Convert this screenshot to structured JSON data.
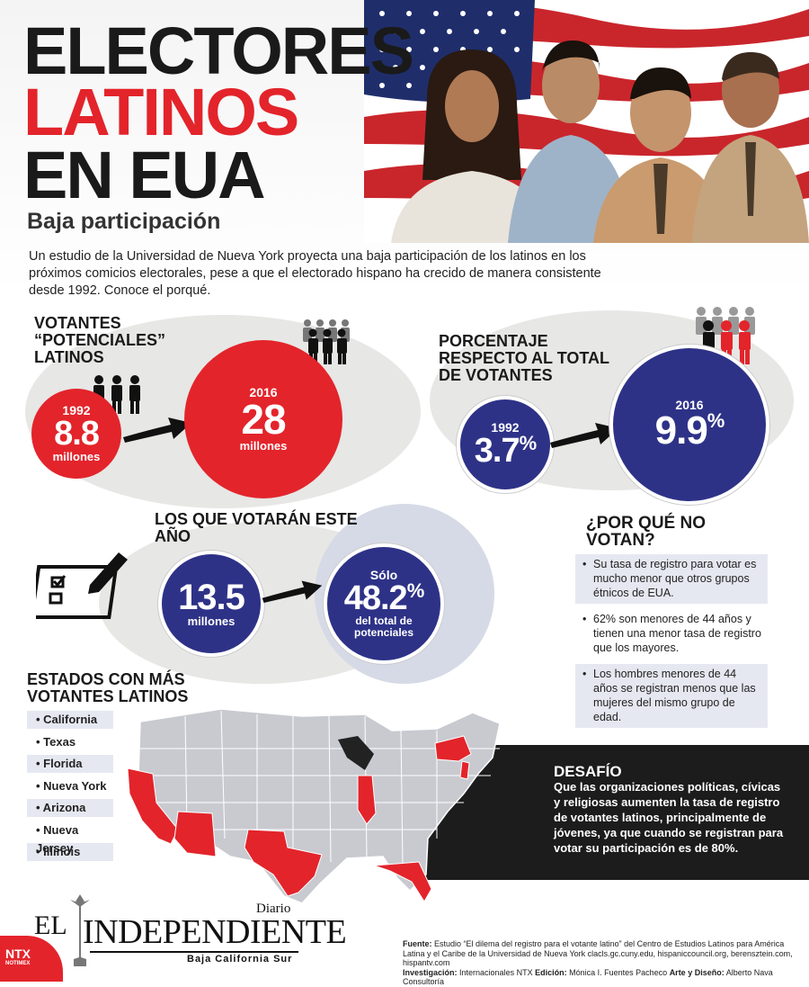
{
  "header": {
    "title_line1": "ELECTORES",
    "title_line2": "LATINOS",
    "title_line3": "EN EUA",
    "subtitle": "Baja participación",
    "intro": "Un estudio de la Universidad de Nueva York proyecta una baja participación de los latinos en los próximos comicios electorales, pese a que el electorado hispano ha crecido de manera consistente desde 1992. Conoce el porqué."
  },
  "potential": {
    "heading": "VOTANTES “POTENCIALES” LATINOS",
    "year_a": "1992",
    "value_a": "8.8",
    "unit_a": "millones",
    "year_b": "2016",
    "value_b": "28",
    "unit_b": "millones"
  },
  "share": {
    "heading": "PORCENTAJE RESPECTO AL TOTAL DE VOTANTES",
    "year_a": "1992",
    "value_a": "3.7",
    "year_b": "2016",
    "value_b": "9.9",
    "pct": "%"
  },
  "will_vote": {
    "heading": "LOS QUE VOTARÁN ESTE AÑO",
    "value": "13.5",
    "unit": "millones",
    "only": "Sólo",
    "share": "48.2",
    "pct": "%",
    "share_caption": "del total de potenciales"
  },
  "why": {
    "heading": "¿POR QUÉ NO VOTAN?",
    "reasons": [
      "Su tasa de registro para votar es mucho menor que otros grupos étnicos de EUA.",
      "62% son menores de 44 años y tienen una menor tasa de registro que los mayores.",
      "Los hombres menores de 44 años se registran menos que las mujeres del mismo grupo de edad."
    ]
  },
  "states": {
    "heading": "ESTADOS CON MÁS VOTANTES LATINOS",
    "items": [
      "• California",
      "• Texas",
      "• Florida",
      "• Nueva York",
      "• Arizona",
      "• Nueva Jersey",
      "• Illinois"
    ]
  },
  "challenge": {
    "heading": "DESAFÍO",
    "text": "Que las organizaciones políticas, cívicas y religiosas aumenten la tasa de registro de votantes latinos, principalmente de jóvenes, ya que cuando se registran para votar su participación es de 80%."
  },
  "footer": {
    "source_label": "Fuente:",
    "source": "Estudio “El dilema del registro para el votante latino” del Centro de Estudios Latinos para América Latina y el Caribe de la Universidad de Nueva York clacls.gc.cuny.edu, hispaniccouncil.org, berensztein.com, hispantv.com",
    "research_label": "Investigación:",
    "research": "Internacionales NTX",
    "edition_label": "Edición:",
    "edition": "Mónica I. Fuentes Pacheco",
    "design_label": "Arte y Diseño:",
    "design": "Alberto Nava Consultoría"
  },
  "logo": {
    "el": "EL",
    "name": "INDEPENDIENTE",
    "diario": "Diario",
    "region": "Baja California Sur",
    "ntx": "NTX",
    "ntx_sub": "NOTIMEX"
  },
  "colors": {
    "red": "#e3242b",
    "blue": "#2e3287",
    "dark": "#1c1c1c"
  }
}
